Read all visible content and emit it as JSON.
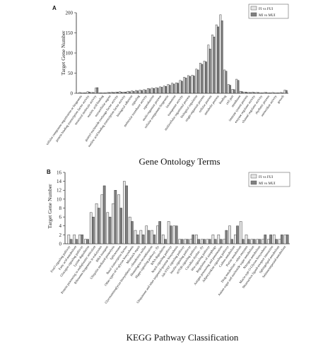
{
  "chart_data": [
    {
      "type": "bar",
      "panel": "A",
      "title": "",
      "xlabel": "Gene Ontology Terms",
      "ylabel": "Target Gene Number",
      "ylim": [
        0,
        200
      ],
      "yticks": [
        0,
        50,
        100,
        150,
        200
      ],
      "grid": false,
      "legend": "top-right",
      "series_colors": [
        "#e6e6e6",
        "#808080"
      ],
      "categories": [
        "cellular component organization or biogenesis",
        "protein binding transcription factor activity",
        "structural molecule activity",
        "nucleic acid binding",
        "transcription regulator activity",
        "extracellular region",
        "guanyl-nucleotide exchange factor activity",
        "membrane-enclosed lumen",
        "molecular function regulator",
        "nucleic acid binding transcription factor activity",
        "biological adhesion",
        "signaling",
        "cell junction",
        "catalytic activity",
        "reproduction",
        "molecular transducer activity",
        "signal transducer activity",
        "multi-organism process",
        "cellular component biogenesis",
        "locomotion",
        "transporter activity",
        "cell proliferation",
        "localization",
        "developmental process",
        "macromolecular complex",
        "multicellular organismal process",
        "growth",
        "organelle",
        "response to stimulus",
        "biological regulation",
        "single-organism process",
        "cellular process",
        "metabolic process",
        "binding",
        "cell part",
        "cell",
        "membrane",
        "immune system process",
        "membrane part",
        "enzyme regulator activity",
        "channel regulator activity",
        "rhythmic process",
        "antioxidant activity",
        "synapse",
        "virion",
        "extracellular matrix",
        "structural constituent",
        "synapse part",
        "receptor activity",
        "cell killing",
        "electron carrier",
        "virion part"
      ],
      "tick_labels": [
        "cellular component organization or biogenesis",
        "protein binding transcription factor activity",
        "structural molecule activity",
        "nucleic acid binding",
        "extracellular region",
        "guanyl-nucleotide exchange factor activity",
        "nucleic acid binding transcription factor activity",
        "biological adhesion",
        "signaling",
        "molecular transducer activity",
        "reproduction",
        "multi-organism process",
        "cellular component biogenesis",
        "locomotion",
        "transporter activity",
        "multicellular organismal process",
        "biological regulation",
        "single-organism process",
        "cellular process",
        "metabolic process",
        "binding",
        "cell part",
        "membrane",
        "immune system process",
        "enzyme regulator activity",
        "channel regulator activity",
        "rhythmic process",
        "antioxidant activity",
        "growth"
      ],
      "series": [
        {
          "name": "FI vs FUI",
          "values": [
            2,
            1,
            4,
            2,
            13,
            1,
            1,
            2,
            3,
            3,
            4,
            3,
            5,
            6,
            7,
            8,
            9,
            12,
            13,
            14,
            16,
            18,
            22,
            25,
            26,
            32,
            40,
            44,
            45,
            60,
            75,
            80,
            120,
            145,
            170,
            195,
            58,
            22,
            10,
            35,
            5,
            3,
            2,
            3,
            2,
            1,
            2,
            1,
            2,
            1,
            2,
            8
          ]
        },
        {
          "name": "MI vs MUI",
          "values": [
            1,
            1,
            3,
            2,
            14,
            1,
            1,
            2,
            2,
            3,
            3,
            3,
            4,
            5,
            6,
            7,
            8,
            11,
            12,
            13,
            15,
            17,
            20,
            23,
            25,
            30,
            38,
            42,
            43,
            58,
            72,
            78,
            110,
            140,
            165,
            180,
            55,
            20,
            9,
            32,
            4,
            3,
            2,
            2,
            2,
            1,
            2,
            1,
            1,
            1,
            1,
            7
          ]
        }
      ]
    },
    {
      "type": "bar",
      "panel": "B",
      "title": "",
      "xlabel": "KEGG Pathway Classification",
      "ylabel": "Target Gene Number",
      "ylim": [
        0,
        16
      ],
      "yticks": [
        0,
        2,
        4,
        6,
        8,
        10,
        12,
        14,
        16
      ],
      "grid": false,
      "legend": "top-right",
      "series_colors": [
        "#e6e6e6",
        "#808080"
      ],
      "categories": [
        "FoxO signaling pathway",
        "Fatty acid metabolism",
        "Glucagon signaling pathway",
        "Lysine degradation",
        "Protein processing in endoplasmic reticulum",
        "Endocytosis",
        "Ribosome biogenesis in eukaryotes",
        "RNA transport",
        "mRNA surveillance pathway",
        "Ubiquitin mediated proteolysis",
        "Spliceosome",
        "Protein export",
        "Basal transcription factors",
        "Proteasome",
        "Other types of O-glycan biosynthesis",
        "Mismatch repair",
        "Homologous recombination",
        "RNA degradation",
        "Notch signaling pathway",
        "Hippo signaling pathway - fly",
        "Glycosaminoglycan biosynthesis - chondroitin sulfate",
        "Ubiquinone and other terpenoid-quinone biosynthesis",
        "Pyruvate metabolism",
        "Jak-STAT signaling pathway",
        "Insulin signaling pathway",
        "mTOR signaling pathway",
        "Circadian rhythm - fly",
        "Wnt signaling pathway",
        "Regulation of autophagy",
        "Antigen processing and presentation",
        "Adipocytokine signaling pathway",
        "Carbon metabolism",
        "Purine metabolism",
        "Drug metabolism - other enzymes",
        "Amino sugar and nucleotide sugar metabolism",
        "Nitrogen metabolism",
        "Mucin type O-Glycan biosynthesis",
        "Neuroactive ligand-receptor interaction",
        "Sphingolipid metabolism",
        "Selenocompound metabolism"
      ],
      "tick_labels": [
        "FoxO signaling pathway",
        "Fatty acid metabolism",
        "Glucagon signaling pathway",
        "Lysine degradation",
        "Protein processing in endoplasmic reticulum",
        "Ribosome biogenesis in eukaryotes",
        "RNA transport",
        "Ubiquitin mediated proteolysis",
        "Spliceosome",
        "Basal transcription factors",
        "Other types of O-glycan biosynthesis",
        "Mismatch repair",
        "Glycosaminoglycan biosynthesis - chondroitin sulfate",
        "Homologous recombination",
        "Hippo signaling pathway - fly",
        "RNA degradation",
        "Notch signaling pathway",
        "Ubiquinone and other terpenoid-quinone biosynthesis",
        "Jak-STAT signaling pathway",
        "Insulin signaling pathway",
        "mTOR signaling pathway",
        "Circadian rhythm - fly",
        "Wnt signaling pathway",
        "Regulation of autophagy",
        "Antigen processing and presentation",
        "Adipocytokine signaling pathway",
        "Carbon metabolism",
        "Purine metabolism",
        "Drug metabolism - other enzymes",
        "Amino sugar and nucleotide sugar metabolism",
        "Nitrogen metabolism",
        "Mucin type O-Glycan biosynthesis",
        "Neuroactive ligand-receptor interaction",
        "Sphingolipid metabolism",
        "Selenocompound metabolism"
      ],
      "series": [
        {
          "name": "FI vs FUI",
          "values": [
            2,
            2,
            2,
            1,
            7,
            9,
            11,
            7,
            9,
            11,
            14,
            6,
            3,
            3,
            4,
            3,
            4,
            2,
            5,
            4,
            1,
            1,
            1,
            2,
            1,
            1,
            2,
            2,
            1,
            4,
            2,
            5,
            2,
            1,
            1,
            1,
            1,
            2,
            1,
            2
          ]
        },
        {
          "name": "MI vs MUI",
          "values": [
            1,
            1,
            2,
            1,
            6,
            8,
            13,
            6,
            12,
            8,
            13,
            5,
            2,
            2,
            3,
            2,
            5,
            1,
            4,
            4,
            1,
            1,
            2,
            1,
            1,
            1,
            1,
            1,
            3,
            1,
            4,
            1,
            1,
            1,
            1,
            2,
            2,
            1,
            2,
            2
          ]
        }
      ]
    }
  ]
}
